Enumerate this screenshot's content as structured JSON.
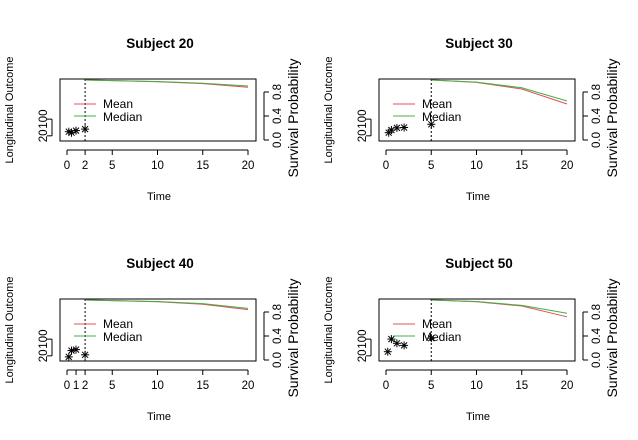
{
  "colors": {
    "mean": "#e0505a",
    "median": "#44b044",
    "axis": "#000000",
    "star": "#000000"
  },
  "chart_data": [
    {
      "type": "line",
      "title": "Subject 20",
      "xlabel": "Time",
      "ylabel": "Longitudinal Outcome",
      "y2label": "Survival Probability",
      "xlim": [
        0,
        21
      ],
      "ylim": [
        0,
        230
      ],
      "y2lim": [
        0,
        1
      ],
      "xticks": [
        "0",
        "2",
        "5",
        "10",
        "15",
        "20"
      ],
      "yticks": [
        "20",
        "100"
      ],
      "y2ticks": [
        "0.0",
        "0.4",
        "0.8"
      ],
      "last_time": 2,
      "observations": {
        "x": [
          0.2,
          0.5,
          1.0,
          2.0
        ],
        "y": [
          40,
          35,
          45,
          52
        ]
      },
      "legend": [
        "Mean",
        "Median"
      ],
      "series": [
        {
          "name": "Mean",
          "x": [
            2,
            5,
            10,
            15,
            20
          ],
          "y": [
            1.0,
            0.99,
            0.97,
            0.94,
            0.88
          ]
        },
        {
          "name": "Median",
          "x": [
            2,
            5,
            10,
            15,
            20
          ],
          "y": [
            1.0,
            0.99,
            0.975,
            0.945,
            0.9
          ]
        }
      ]
    },
    {
      "type": "line",
      "title": "Subject 30",
      "xlabel": "Time",
      "ylabel": "Longitudinal Outcome",
      "y2label": "Survival Probability",
      "xlim": [
        0,
        21
      ],
      "ylim": [
        0,
        230
      ],
      "y2lim": [
        0,
        1
      ],
      "xticks": [
        "0",
        "5",
        "10",
        "15",
        "20"
      ],
      "yticks": [
        "20",
        "100"
      ],
      "y2ticks": [
        "0.0",
        "0.4",
        "0.8"
      ],
      "last_time": 5,
      "observations": {
        "x": [
          0.3,
          0.6,
          1.2,
          2.0,
          5.0
        ],
        "y": [
          35,
          48,
          58,
          60,
          75
        ]
      },
      "legend": [
        "Mean",
        "Median"
      ],
      "series": [
        {
          "name": "Mean",
          "x": [
            5,
            10,
            15,
            20
          ],
          "y": [
            1.0,
            0.96,
            0.85,
            0.6
          ]
        },
        {
          "name": "Median",
          "x": [
            5,
            10,
            15,
            20
          ],
          "y": [
            1.0,
            0.965,
            0.87,
            0.65
          ]
        }
      ]
    },
    {
      "type": "line",
      "title": "Subject 40",
      "xlabel": "Time",
      "ylabel": "Longitudinal Outcome",
      "y2label": "Survival Probability",
      "xlim": [
        0,
        21
      ],
      "ylim": [
        0,
        230
      ],
      "y2lim": [
        0,
        1
      ],
      "xticks": [
        "0",
        "1",
        "2",
        "5",
        "10",
        "15",
        "20"
      ],
      "yticks": [
        "20",
        "100"
      ],
      "y2ticks": [
        "0.0",
        "0.4",
        "0.8"
      ],
      "last_time": 2,
      "observations": {
        "x": [
          0.2,
          0.5,
          1.0,
          2.0
        ],
        "y": [
          15,
          45,
          50,
          25
        ]
      },
      "legend": [
        "Mean",
        "Median"
      ],
      "series": [
        {
          "name": "Mean",
          "x": [
            2,
            5,
            10,
            15,
            20
          ],
          "y": [
            1.0,
            0.99,
            0.97,
            0.93,
            0.84
          ]
        },
        {
          "name": "Median",
          "x": [
            2,
            5,
            10,
            15,
            20
          ],
          "y": [
            1.0,
            0.99,
            0.975,
            0.94,
            0.86
          ]
        }
      ]
    },
    {
      "type": "line",
      "title": "Subject 50",
      "xlabel": "Time",
      "ylabel": "Longitudinal Outcome",
      "y2label": "Survival Probability",
      "xlim": [
        0,
        21
      ],
      "ylim": [
        0,
        230
      ],
      "y2lim": [
        0,
        1
      ],
      "xticks": [
        "0",
        "5",
        "10",
        "15",
        "20"
      ],
      "yticks": [
        "20",
        "100"
      ],
      "y2ticks": [
        "0.0",
        "0.4",
        "0.8"
      ],
      "last_time": 5,
      "observations": {
        "x": [
          0.2,
          0.6,
          1.2,
          2.0,
          5.0
        ],
        "y": [
          40,
          100,
          80,
          70,
          105
        ]
      },
      "legend": [
        "Mean",
        "Median"
      ],
      "series": [
        {
          "name": "Mean",
          "x": [
            5,
            10,
            15,
            20
          ],
          "y": [
            1.0,
            0.97,
            0.9,
            0.72
          ]
        },
        {
          "name": "Median",
          "x": [
            5,
            10,
            15,
            20
          ],
          "y": [
            1.0,
            0.975,
            0.91,
            0.78
          ]
        }
      ]
    }
  ]
}
